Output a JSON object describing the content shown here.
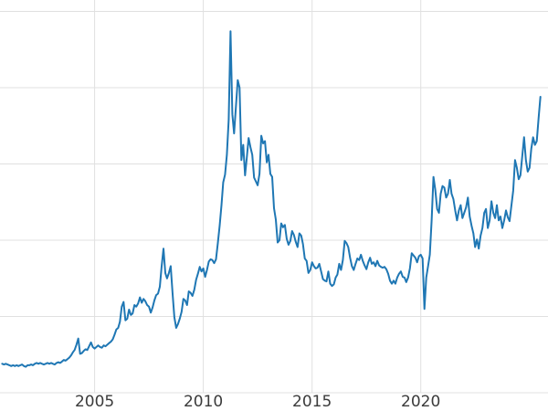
{
  "chart_data": {
    "type": "line",
    "title": "",
    "xlabel": "",
    "ylabel": "",
    "legend": false,
    "grid": true,
    "x_tick_labels": [
      "2005",
      "2010",
      "2015",
      "2020"
    ],
    "x_ticks": [
      2005,
      2010,
      2015,
      2020
    ],
    "xlim": [
      2000.65,
      2025.85
    ],
    "ylim": [
      0,
      51.5
    ],
    "y_gridlines": [
      0,
      10,
      20,
      30,
      40,
      50
    ],
    "x_start": 2000.75,
    "x_step_years": 0.0833333,
    "values": [
      3.8,
      3.7,
      3.8,
      3.7,
      3.6,
      3.5,
      3.6,
      3.5,
      3.6,
      3.5,
      3.6,
      3.7,
      3.5,
      3.4,
      3.6,
      3.6,
      3.7,
      3.6,
      3.8,
      3.9,
      3.8,
      3.9,
      3.8,
      3.7,
      3.8,
      3.9,
      3.8,
      3.9,
      3.8,
      3.7,
      3.9,
      4.0,
      3.9,
      4.1,
      4.3,
      4.2,
      4.4,
      4.6,
      4.9,
      5.3,
      5.6,
      6.3,
      7.1,
      5.1,
      5.2,
      5.5,
      5.7,
      5.6,
      6.1,
      6.6,
      6.0,
      5.8,
      6.0,
      6.2,
      6.0,
      5.9,
      6.2,
      6.1,
      6.3,
      6.5,
      6.7,
      7.0,
      7.6,
      8.3,
      8.5,
      9.3,
      11.3,
      11.9,
      9.5,
      9.7,
      10.9,
      10.2,
      10.4,
      11.5,
      11.3,
      11.7,
      12.5,
      11.8,
      12.3,
      12.0,
      11.5,
      11.3,
      10.5,
      11.2,
      12.1,
      12.8,
      13.0,
      13.9,
      16.6,
      18.9,
      15.7,
      15.0,
      15.7,
      16.6,
      13.1,
      9.9,
      8.5,
      9.0,
      9.7,
      10.6,
      12.3,
      12.1,
      11.5,
      13.3,
      13.1,
      12.7,
      13.5,
      14.8,
      15.6,
      16.5,
      15.9,
      16.3,
      15.2,
      16.1,
      17.2,
      17.5,
      17.4,
      17.0,
      17.5,
      19.6,
      21.9,
      24.6,
      27.6,
      28.6,
      31.2,
      35.8,
      47.4,
      36.5,
      34.0,
      37.5,
      41.0,
      40.0,
      30.5,
      32.5,
      28.5,
      30.8,
      33.4,
      32.2,
      31.2,
      28.2,
      27.7,
      27.2,
      28.7,
      33.7,
      32.7,
      33.0,
      30.2,
      31.2,
      28.7,
      28.3,
      24.2,
      22.7,
      19.7,
      20.0,
      22.2,
      21.7,
      22.0,
      20.2,
      19.4,
      19.9,
      21.2,
      20.7,
      19.8,
      19.1,
      20.9,
      20.6,
      19.5,
      17.6,
      17.3,
      15.7,
      16.1,
      17.1,
      16.6,
      16.3,
      16.4,
      16.9,
      15.9,
      14.9,
      14.7,
      14.6,
      15.9,
      14.3,
      14.0,
      14.2,
      15.1,
      15.5,
      16.9,
      16.1,
      17.4,
      19.9,
      19.6,
      19.1,
      17.7,
      16.6,
      16.1,
      16.9,
      17.6,
      17.4,
      18.1,
      17.3,
      16.7,
      16.2,
      17.1,
      17.7,
      16.9,
      17.1,
      16.6,
      17.3,
      16.7,
      16.5,
      16.4,
      16.5,
      16.2,
      15.6,
      14.7,
      14.3,
      14.7,
      14.3,
      15.1,
      15.6,
      15.9,
      15.2,
      15.1,
      14.5,
      15.1,
      16.3,
      18.3,
      18.0,
      17.7,
      17.1,
      17.9,
      18.1,
      17.6,
      11.0,
      15.1,
      16.6,
      18.1,
      22.6,
      28.3,
      26.6,
      24.1,
      23.6,
      26.1,
      27.1,
      26.9,
      25.6,
      26.1,
      27.9,
      26.1,
      25.4,
      23.9,
      22.6,
      23.9,
      24.6,
      22.9,
      23.6,
      24.3,
      25.6,
      23.1,
      21.9,
      20.9,
      19.1,
      20.1,
      18.9,
      20.6,
      21.6,
      23.6,
      24.1,
      21.6,
      22.6,
      25.1,
      23.6,
      22.9,
      24.6,
      22.6,
      23.1,
      21.6,
      22.6,
      23.9,
      23.0,
      22.5,
      24.5,
      26.5,
      30.5,
      29.5,
      28.0,
      28.5,
      31.0,
      33.5,
      30.5,
      29.0,
      29.5,
      32.0,
      33.5,
      32.5,
      33.0,
      36.0,
      38.8
    ],
    "style": {
      "line_color": "#1f77b4",
      "grid_color": "#e0e0e0",
      "tick_label_color": "#3b3b3b",
      "background": "#ffffff"
    }
  }
}
